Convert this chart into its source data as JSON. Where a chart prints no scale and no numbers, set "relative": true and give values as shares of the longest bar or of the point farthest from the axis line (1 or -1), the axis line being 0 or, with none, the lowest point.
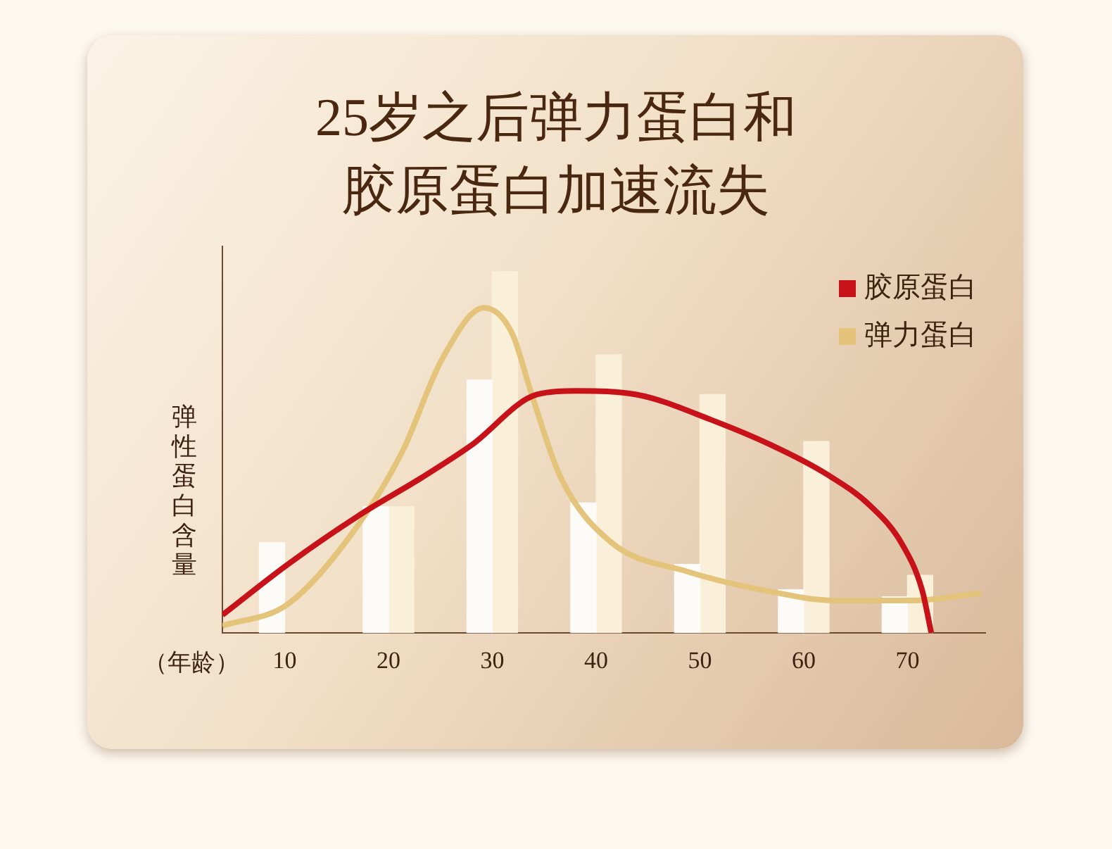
{
  "chart_data": {
    "type": "bar",
    "title": "25岁之后弹力蛋白和胶原蛋白加速流失",
    "xlabel": "（年龄）",
    "ylabel": "弹性蛋白含量",
    "relative": true,
    "legend": "top right",
    "xlim": [
      4,
      77.5
    ],
    "xticks": [
      10,
      20,
      30,
      40,
      50,
      60,
      70
    ],
    "series": [
      {
        "color": "#fdfbf7",
        "x": [
          10,
          20,
          30,
          40,
          50,
          60,
          70
        ],
        "values": [
          0.25,
          0.35,
          0.7,
          0.36,
          0.19,
          0.12,
          0.1
        ]
      },
      {
        "color": "#faefd9",
        "x": [
          20,
          30,
          40,
          50,
          60,
          70
        ],
        "values": [
          0.35,
          1,
          0.77,
          0.66,
          0.53,
          0.16
        ]
      },
      {
        "type": "line",
        "name": "胶原蛋白",
        "color": "#c8121a",
        "x": [
          4,
          10.3,
          17.4,
          23.2,
          28,
          34.3,
          38.2,
          43.9,
          51.1,
          56.9,
          62.2,
          66.5,
          69.4,
          71.4,
          72.3
        ],
        "values": [
          0.05,
          0.19,
          0.33,
          0.43,
          0.52,
          0.66,
          0.67,
          0.66,
          0.59,
          0.52,
          0.44,
          0.35,
          0.25,
          0.12,
          0
        ]
      },
      {
        "type": "line",
        "name": "弹力蛋白",
        "color": "#e3c47a",
        "x": [
          4,
          10.3,
          16.6,
          21.3,
          25.2,
          29.2,
          31.9,
          33.8,
          36.6,
          41.5,
          48.8,
          55.9,
          63.1,
          70.4,
          77.1
        ],
        "values": [
          0.02,
          0.08,
          0.28,
          0.5,
          0.76,
          0.9,
          0.83,
          0.66,
          0.43,
          0.25,
          0.17,
          0.12,
          0.09,
          0.09,
          0.11
        ]
      }
    ]
  }
}
